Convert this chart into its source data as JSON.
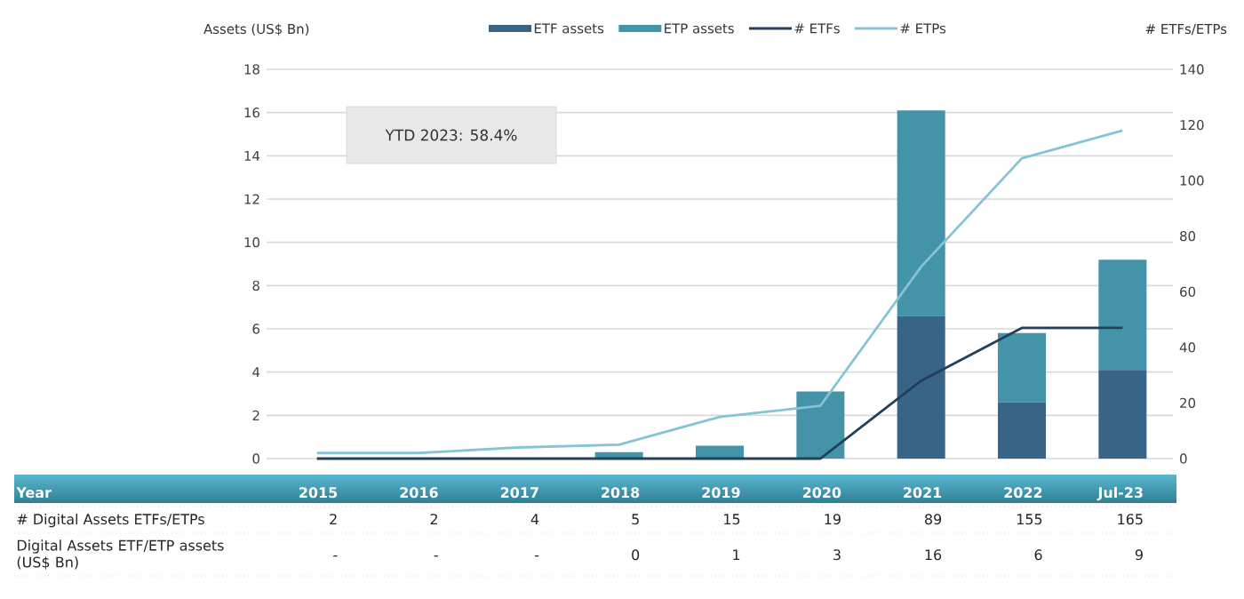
{
  "chart_data": {
    "type": "bar",
    "stacked": true,
    "categories": [
      "2015",
      "2016",
      "2017",
      "2018",
      "2019",
      "2020",
      "2021",
      "2022",
      "Jul-23"
    ],
    "series": [
      {
        "name": "ETF assets",
        "color": "#376487",
        "values": [
          0,
          0,
          0,
          0,
          0,
          0,
          6.6,
          2.6,
          4.1
        ]
      },
      {
        "name": "ETP assets",
        "color": "#4393a9",
        "values": [
          0,
          0,
          0,
          0.3,
          0.6,
          3.1,
          9.5,
          3.2,
          5.1
        ]
      },
      {
        "name": "# ETFs",
        "type": "line",
        "axis": "y2",
        "color": "#243f5a",
        "values": [
          0,
          0,
          0,
          0,
          0,
          0,
          28,
          47,
          47
        ]
      },
      {
        "name": "# ETPs",
        "type": "line",
        "axis": "y2",
        "color": "#86c4d4",
        "values": [
          2,
          2,
          4,
          5,
          15,
          19,
          69,
          108,
          118
        ]
      }
    ],
    "ylabel": "Assets (US$ Bn)",
    "y2label": "# ETFs/ETPs",
    "ylim": [
      0,
      18
    ],
    "yticks": [
      0,
      2,
      4,
      6,
      8,
      10,
      12,
      14,
      16,
      18
    ],
    "y2lim": [
      0,
      140
    ],
    "y2ticks": [
      0,
      20,
      40,
      60,
      80,
      100,
      120,
      140
    ],
    "grid": "y",
    "legend": "top",
    "annotations": [
      "YTD 2023: 58.4%",
      "Year",
      "# Digital Assets ETFs/ETPs",
      "Digital Assets ETF/ETP assets (US$ Bn)",
      "2",
      "2",
      "4",
      "5",
      "15",
      "19",
      "89",
      "155",
      "165",
      "-",
      "-",
      "-",
      "0",
      "1",
      "3",
      "16",
      "6",
      "9"
    ]
  }
}
